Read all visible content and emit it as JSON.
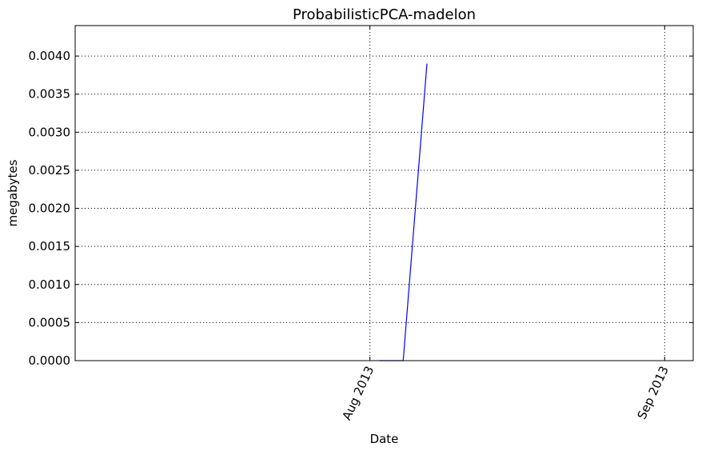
{
  "chart_data": {
    "type": "line",
    "title": "ProbabilisticPCA-madelon",
    "xlabel": "Date",
    "ylabel": "megabytes",
    "ylim": [
      0,
      0.0044
    ],
    "xlim": [
      "2013-07-01",
      "2013-09-04"
    ],
    "grid": true,
    "y_ticks": [
      "0.0000",
      "0.0005",
      "0.0010",
      "0.0015",
      "0.0020",
      "0.0025",
      "0.0030",
      "0.0035",
      "0.0040"
    ],
    "x_ticks": [
      {
        "date": "2013-08-01",
        "label": "Aug 2013"
      },
      {
        "date": "2013-09-01",
        "label": "Sep 2013"
      }
    ],
    "series": [
      {
        "color": "#0000ff",
        "x": [
          "2013-08-02",
          "2013-08-04.5",
          "2013-08-07"
        ],
        "y": [
          0.0,
          0.0,
          0.0039
        ]
      }
    ]
  }
}
